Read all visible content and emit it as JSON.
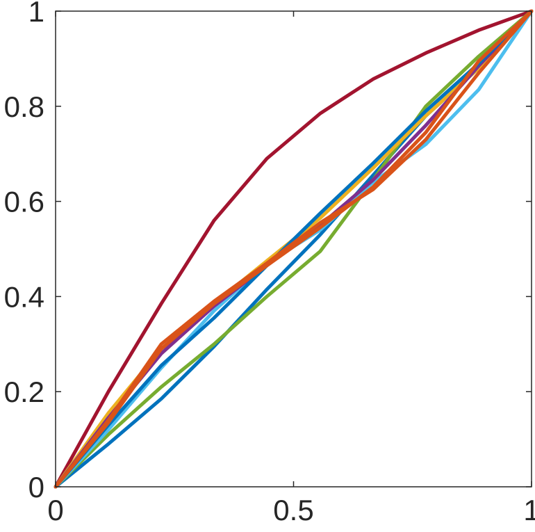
{
  "chart_data": {
    "type": "line",
    "title": "",
    "xlabel": "",
    "ylabel": "",
    "xlim": [
      0,
      1
    ],
    "ylim": [
      0,
      1
    ],
    "grid": false,
    "x_ticks": [
      0,
      0.5,
      1
    ],
    "x_tick_labels": [
      "0",
      "0.5",
      "1"
    ],
    "y_ticks": [
      0,
      0.2,
      0.4,
      0.6,
      0.8,
      1
    ],
    "y_tick_labels": [
      "0",
      "0.2",
      "0.4",
      "0.6",
      "0.8",
      "1"
    ],
    "x": [
      0,
      0.111,
      0.222,
      0.333,
      0.444,
      0.556,
      0.667,
      0.778,
      0.889,
      1
    ],
    "series": [
      {
        "color": "#A2142F",
        "values": [
          0,
          0.2,
          0.385,
          0.56,
          0.69,
          0.785,
          0.857,
          0.912,
          0.96,
          1
        ]
      },
      {
        "color": "#0072BD",
        "values": [
          0,
          0.09,
          0.185,
          0.295,
          0.415,
          0.53,
          0.655,
          0.78,
          0.88,
          1
        ]
      },
      {
        "color": "#77AC30",
        "values": [
          0,
          0.11,
          0.21,
          0.3,
          0.4,
          0.495,
          0.645,
          0.8,
          0.905,
          1
        ]
      },
      {
        "color": "#4DBEEE",
        "values": [
          0,
          0.12,
          0.25,
          0.37,
          0.47,
          0.54,
          0.64,
          0.72,
          0.835,
          1
        ]
      },
      {
        "color": "#EDB120",
        "values": [
          0,
          0.155,
          0.29,
          0.385,
          0.475,
          0.565,
          0.67,
          0.78,
          0.88,
          1
        ]
      },
      {
        "color": "#7E2F8E",
        "values": [
          0,
          0.145,
          0.28,
          0.38,
          0.465,
          0.55,
          0.645,
          0.76,
          0.885,
          1
        ]
      },
      {
        "color": "#0072BD",
        "values": [
          0,
          0.13,
          0.255,
          0.355,
          0.465,
          0.575,
          0.68,
          0.79,
          0.89,
          1
        ]
      },
      {
        "color": "#D95319",
        "values": [
          0,
          0.14,
          0.3,
          0.39,
          0.47,
          0.555,
          0.625,
          0.73,
          0.87,
          1
        ]
      },
      {
        "color": "#D95319",
        "values": [
          0,
          0.135,
          0.29,
          0.385,
          0.465,
          0.545,
          0.63,
          0.745,
          0.895,
          1
        ]
      }
    ]
  }
}
